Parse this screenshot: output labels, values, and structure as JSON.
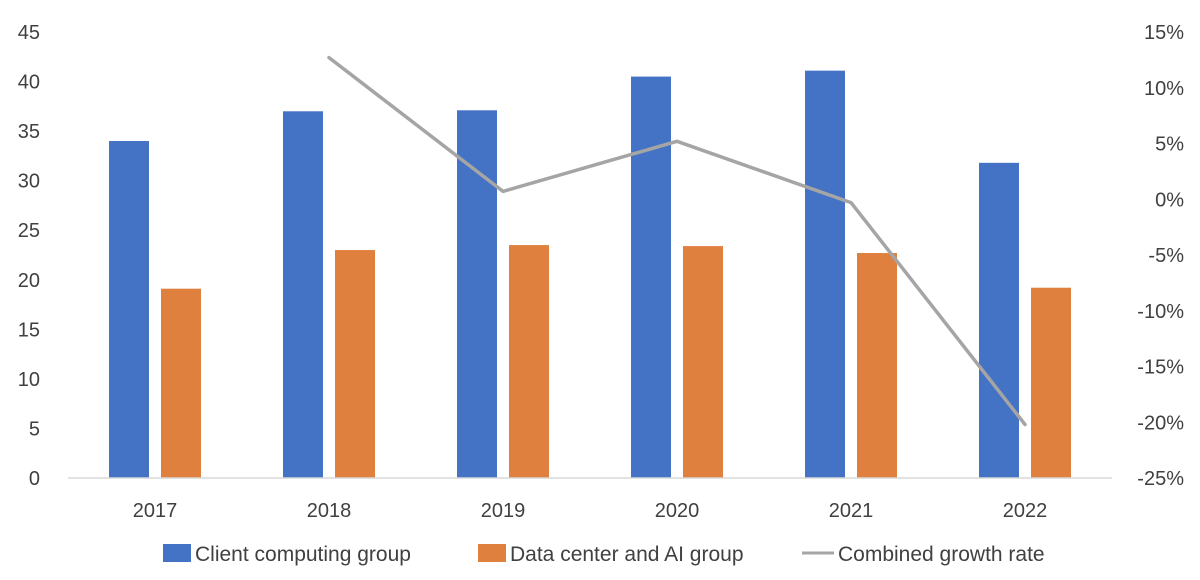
{
  "chart_data": {
    "type": "bar",
    "title": "",
    "xlabel": "",
    "ylabel": "",
    "categories": [
      "2017",
      "2018",
      "2019",
      "2020",
      "2021",
      "2022"
    ],
    "series": [
      {
        "name": "Client computing group",
        "kind": "bar",
        "axis": "left",
        "color": "#4472C4",
        "values": [
          34.0,
          37.0,
          37.1,
          40.5,
          41.1,
          31.8
        ]
      },
      {
        "name": "Data center and AI group",
        "kind": "bar",
        "axis": "left",
        "color": "#E0803F",
        "values": [
          19.1,
          23.0,
          23.5,
          23.4,
          22.7,
          19.2
        ]
      }
    ],
    "line_series": {
      "name": "Combined growth rate",
      "kind": "line",
      "axis": "right",
      "color": "#A5A5A5",
      "values": [
        null,
        12.7,
        0.7,
        5.2,
        -0.3,
        -20.2
      ]
    },
    "left_axis": {
      "min": 0,
      "max": 45,
      "ticks": [
        "0",
        "5",
        "10",
        "15",
        "20",
        "25",
        "30",
        "35",
        "40",
        "45"
      ]
    },
    "right_axis": {
      "min": -25,
      "max": 15,
      "ticks": [
        "-25%",
        "-20%",
        "-15%",
        "-10%",
        "-5%",
        "0%",
        "5%",
        "10%",
        "15%"
      ]
    },
    "legend": {
      "position": "bottom",
      "items": [
        "Client computing group",
        "Data center and AI group",
        "Combined growth rate"
      ]
    },
    "grid": false
  }
}
